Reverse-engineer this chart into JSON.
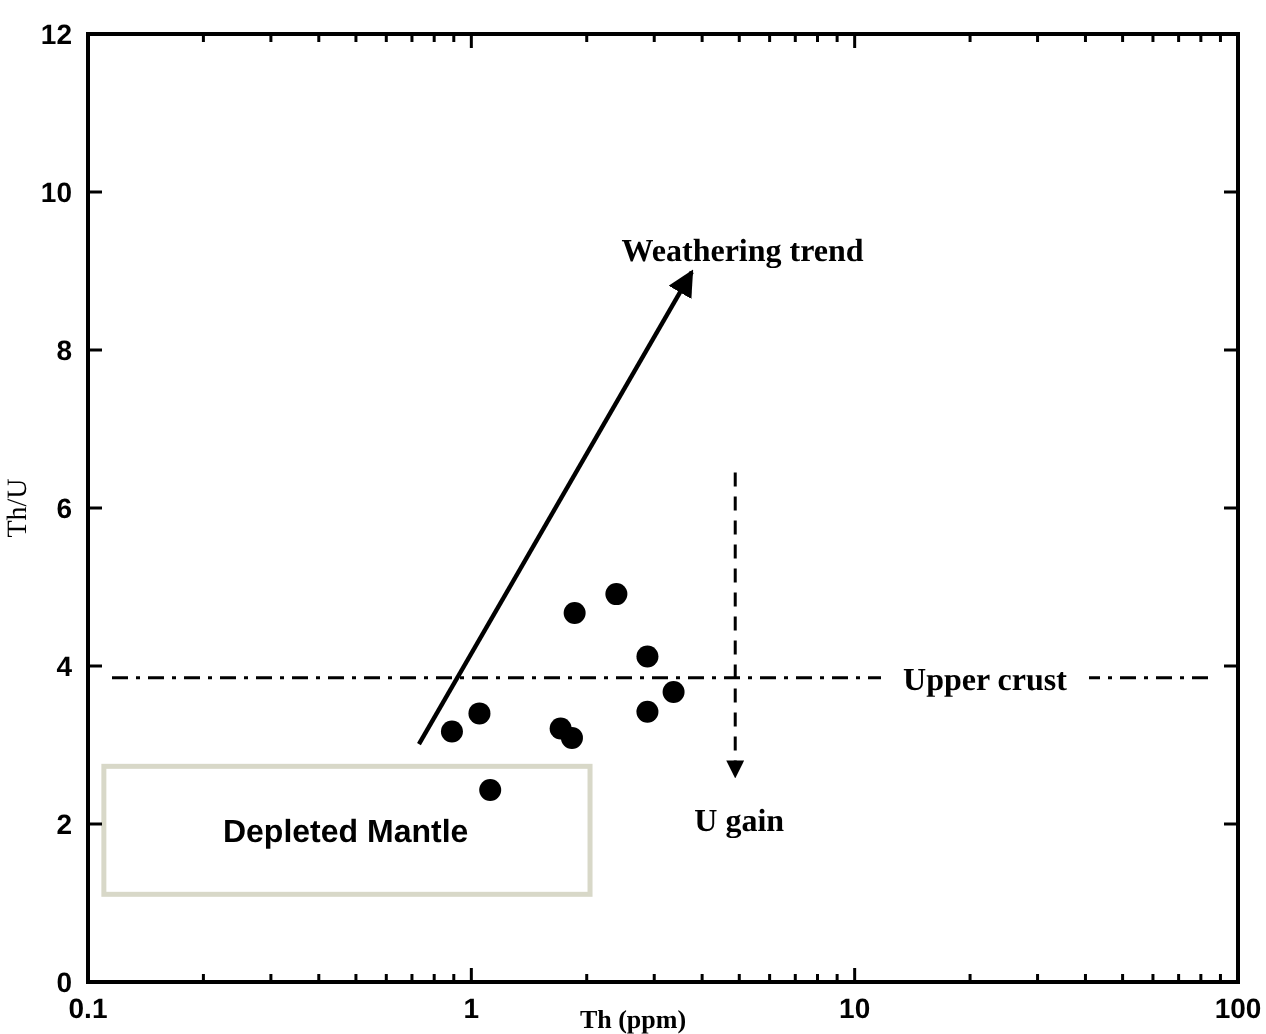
{
  "chart_data": {
    "type": "scatter",
    "xlabel": "Th (ppm)",
    "ylabel": "Th/U",
    "log": "x",
    "x": [
      0.89,
      1.05,
      1.12,
      1.71,
      1.83,
      1.86,
      2.39,
      2.88,
      2.88,
      3.37
    ],
    "series": [
      {
        "color": "#000000",
        "values": [
          3.17,
          3.4,
          2.43,
          3.21,
          3.09,
          4.67,
          4.91,
          4.12,
          3.42,
          3.67
        ]
      }
    ],
    "marker": "circle",
    "xlim": [
      0.1,
      100
    ],
    "xticks": [
      0.1,
      {
        "value": 0.2,
        "label": null
      },
      {
        "value": 0.3,
        "label": null
      },
      {
        "value": 0.4,
        "label": null
      },
      {
        "value": 0.5,
        "label": null
      },
      {
        "value": 0.6,
        "label": null
      },
      {
        "value": 0.7,
        "label": null
      },
      {
        "value": 0.8,
        "label": null
      },
      {
        "value": 0.9,
        "label": null
      },
      1,
      {
        "value": 2,
        "label": null
      },
      {
        "value": 3,
        "label": null
      },
      {
        "value": 4,
        "label": null
      },
      {
        "value": 5,
        "label": null
      },
      {
        "value": 6,
        "label": null
      },
      {
        "value": 7,
        "label": null
      },
      {
        "value": 8,
        "label": null
      },
      {
        "value": 9,
        "label": null
      },
      10,
      {
        "value": 20,
        "label": null
      },
      {
        "value": 30,
        "label": null
      },
      {
        "value": 40,
        "label": null
      },
      {
        "value": 50,
        "label": null
      },
      {
        "value": 60,
        "label": null
      },
      {
        "value": 70,
        "label": null
      },
      {
        "value": 80,
        "label": null
      },
      {
        "value": 90,
        "label": null
      },
      100
    ],
    "ylim": [
      0,
      12
    ],
    "yticks": [
      0,
      2,
      4,
      6,
      8,
      10,
      12
    ],
    "ref_lines": [
      {
        "axis": "y",
        "value": 3.85,
        "label": "Upper crust",
        "line_style": "dashdot",
        "color": "#000000"
      }
    ],
    "annotations": [
      "Weathering trend",
      "U gain",
      "Depleted Mantle"
    ]
  }
}
